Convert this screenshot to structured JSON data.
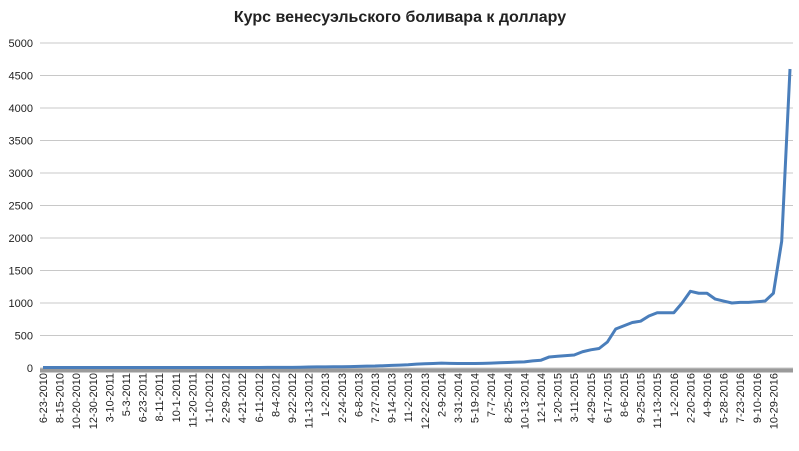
{
  "chart_data": {
    "type": "line",
    "title": "Курс венесуэльского боливара  к доллару",
    "categories": [
      "6-23-2010",
      null,
      "8-15-2010",
      null,
      "10-20-2010",
      null,
      "12-30-2010",
      null,
      "3-10-2011",
      null,
      "5-3-2011",
      null,
      "6-23-2011",
      null,
      "8-11-2011",
      null,
      "10-1-2011",
      null,
      "11-20-2011",
      null,
      "1-10-2012",
      null,
      "2-29-2012",
      null,
      "4-21-2012",
      null,
      "6-11-2012",
      null,
      "8-4-2012",
      null,
      "9-22-2012",
      null,
      "11-13-2012",
      null,
      "1-2-2013",
      null,
      "2-24-2013",
      null,
      "6-8-2013",
      null,
      "7-27-2013",
      null,
      "9-14-2013",
      null,
      "11-2-2013",
      null,
      "12-22-2013",
      null,
      "2-9-2014",
      null,
      "3-31-2014",
      null,
      "5-19-2014",
      null,
      "7-7-2014",
      null,
      "8-25-2014",
      null,
      "10-13-2014",
      null,
      "12-1-2014",
      null,
      "1-20-2015",
      null,
      "3-11-2015",
      null,
      "4-29-2015",
      null,
      "6-17-2015",
      null,
      "8-6-2015",
      null,
      "9-25-2015",
      null,
      "11-13-2015",
      null,
      "1-2-2016",
      null,
      "2-20-2016",
      null,
      "4-9-2016",
      null,
      "5-28-2016",
      null,
      "7-23-2016",
      null,
      "9-10-2016",
      null,
      "10-29-2016",
      null,
      null
    ],
    "values": [
      8,
      8,
      8,
      8,
      8,
      8,
      8,
      8,
      8,
      8,
      8,
      8,
      8,
      8,
      8,
      8,
      8,
      8,
      8,
      8,
      8,
      8,
      8,
      8,
      8,
      8,
      8,
      9,
      9,
      10,
      10,
      12,
      15,
      17,
      18,
      19,
      20,
      22,
      25,
      28,
      30,
      35,
      40,
      45,
      50,
      60,
      65,
      70,
      75,
      72,
      70,
      70,
      70,
      72,
      75,
      80,
      85,
      90,
      95,
      110,
      120,
      170,
      180,
      190,
      200,
      250,
      280,
      300,
      400,
      600,
      650,
      700,
      720,
      800,
      850,
      850,
      850,
      1000,
      1180,
      1150,
      1150,
      1060,
      1030,
      1000,
      1010,
      1010,
      1020,
      1030,
      1150,
      1950,
      4600
    ],
    "color": "#4a7ebb",
    "ylim": [
      0,
      5000
    ],
    "yticks": [
      0,
      500,
      1000,
      1500,
      2000,
      2500,
      3000,
      3500,
      4000,
      4500,
      5000
    ],
    "grid": true
  }
}
